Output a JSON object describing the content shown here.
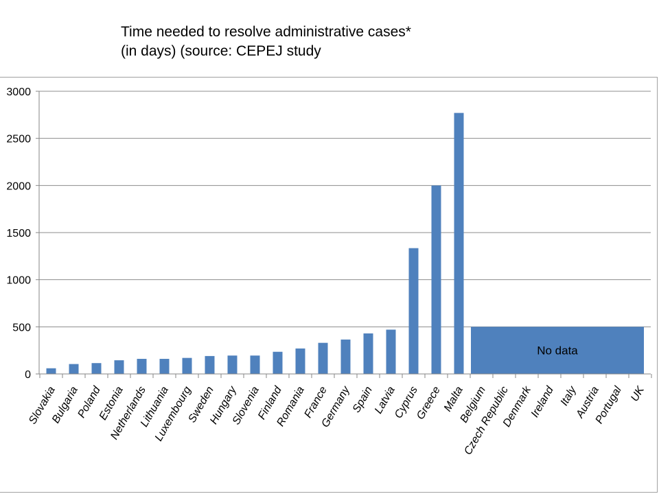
{
  "title": {
    "line1": "Time needed to resolve administrative cases*",
    "line2": "(in days) (source:  CEPEJ study"
  },
  "colors": {
    "bar": "#4f81bd",
    "gridline": "#8c8c8c",
    "axis": "#868686"
  },
  "chart_data": {
    "type": "bar",
    "title": "Time needed to resolve administrative cases* (in days) (source:  CEPEJ study",
    "xlabel": "",
    "ylabel": "",
    "ylim": [
      0,
      3000
    ],
    "yticks": [
      0,
      500,
      1000,
      1500,
      2000,
      2500,
      3000
    ],
    "grid": true,
    "categories": [
      "Slovakia",
      "Bulgaria",
      "Poland",
      "Estonia",
      "Netherlands",
      "Lithuania",
      "Luxembourg",
      "Sweden",
      "Hungary",
      "Slovenia",
      "Finland",
      "Romania",
      "France",
      "Germany",
      "Spain",
      "Latvia",
      "Cyprus",
      "Greece",
      "Malta",
      "Belgium",
      "Czech Republic",
      "Denmark",
      "Ireland",
      "Italy",
      "Austria",
      "Portugal",
      "UK"
    ],
    "values": [
      60,
      105,
      115,
      145,
      160,
      160,
      170,
      190,
      195,
      195,
      235,
      270,
      330,
      365,
      430,
      470,
      1335,
      2000,
      2770,
      null,
      null,
      null,
      null,
      null,
      null,
      null,
      null
    ],
    "annotations": [
      {
        "text": "No data",
        "categories": [
          "Belgium",
          "Czech Republic",
          "Denmark",
          "Ireland",
          "Italy",
          "Austria",
          "Portugal",
          "UK"
        ],
        "value": 500
      }
    ]
  }
}
